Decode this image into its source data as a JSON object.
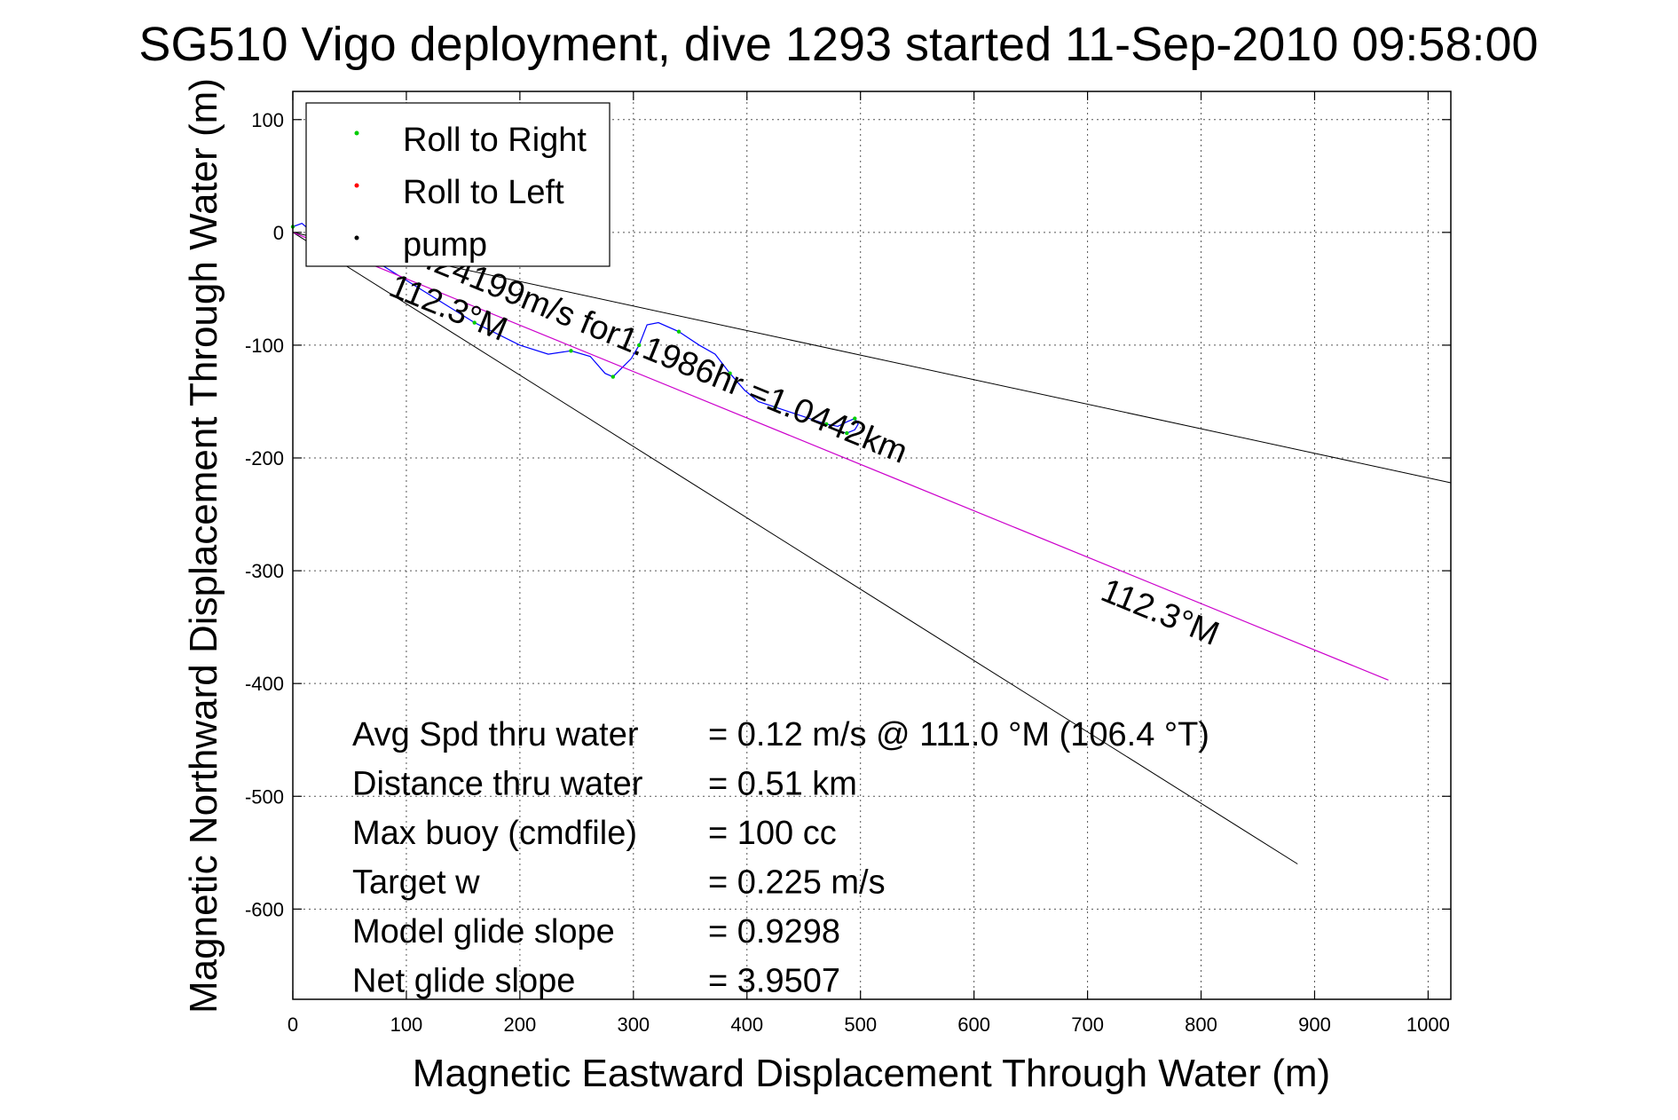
{
  "chart_data": {
    "type": "line",
    "title": "SG510 Vigo deployment, dive 1293 started 11-Sep-2010 09:58:00",
    "xlabel": "Magnetic Eastward Displacement Through Water (m)",
    "ylabel": "Magnetic Northward Displacement Through Water (m)",
    "xlim": [
      0,
      1020
    ],
    "ylim": [
      -680,
      125
    ],
    "xticks": [
      0,
      100,
      200,
      300,
      400,
      500,
      600,
      700,
      800,
      900,
      1000
    ],
    "yticks": [
      100,
      0,
      -100,
      -200,
      -300,
      -400,
      -500,
      -600
    ],
    "grid": true,
    "legend": {
      "position": "top-left",
      "entries": [
        {
          "label": "Roll to Right",
          "color": "#00cc00"
        },
        {
          "label": "Roll to Left",
          "color": "#ff0000"
        },
        {
          "label": "pump",
          "color": "#000000"
        }
      ]
    },
    "series": [
      {
        "color": "#0000ff",
        "x": [
          0,
          8,
          15,
          40,
          80,
          120,
          160,
          200,
          225,
          245,
          262,
          275,
          282,
          290,
          298,
          305,
          312,
          322,
          340,
          358,
          372,
          385,
          398,
          410,
          425,
          440,
          455,
          470,
          480,
          488,
          495,
          498,
          495,
          488,
          480
        ],
        "y": [
          5,
          8,
          2,
          -10,
          -30,
          -55,
          -80,
          -100,
          -108,
          -105,
          -110,
          -125,
          -128,
          -120,
          -112,
          -100,
          -82,
          -80,
          -88,
          -100,
          -108,
          -125,
          -140,
          -150,
          -155,
          -160,
          -165,
          -170,
          -172,
          -168,
          -165,
          -170,
          -175,
          -178,
          -176
        ]
      },
      {
        "color": "#cc00cc",
        "x": [
          0,
          965
        ],
        "y": [
          0,
          -397
        ]
      }
    ],
    "cone_lines": [
      {
        "x": [
          0,
          1020
        ],
        "y": [
          0,
          -222
        ]
      },
      {
        "x": [
          0,
          885
        ],
        "y": [
          0,
          -560
        ]
      }
    ],
    "annotations": [
      {
        "text": "0.24199m/s for1.1986hr =1.0442km",
        "x": 100,
        "y": -25,
        "angle_deg": 22.3
      },
      {
        "text": "112.3°M",
        "x": 83,
        "y": -55,
        "angle_deg": 22.3
      },
      {
        "text": "112.3°M",
        "x": 710,
        "y": -325,
        "angle_deg": 22.3
      }
    ],
    "stats": [
      {
        "label": "Avg Spd thru water",
        "value": "=  0.12 m/s @ 111.0 °M (106.4 °T)"
      },
      {
        "label": "Distance thru water",
        "value": "=  0.51 km"
      },
      {
        "label": "Max buoy (cmdfile)",
        "value": "= 100 cc"
      },
      {
        "label": "Target w",
        "value": "= 0.225 m/s"
      },
      {
        "label": "Model glide slope",
        "value": "= 0.9298"
      },
      {
        "label": "Net glide slope",
        "value": "= 3.9507"
      }
    ]
  }
}
